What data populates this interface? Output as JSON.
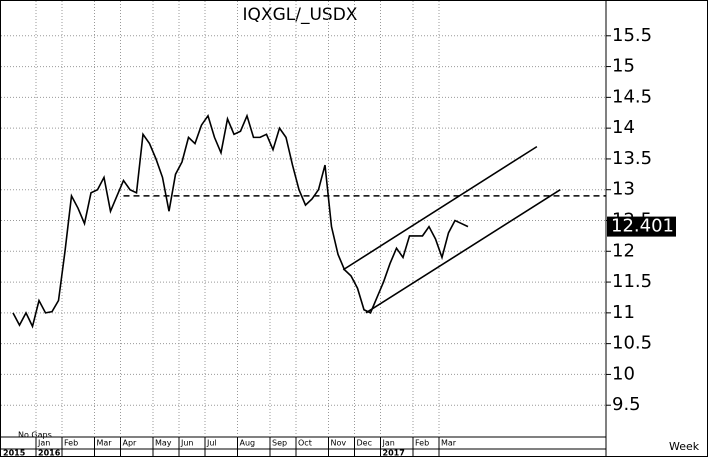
{
  "chart_data": {
    "type": "line",
    "title": "IQXGL/_USDX",
    "categories": [
      null,
      null,
      null,
      null,
      "Jan",
      null,
      null,
      null,
      "Feb",
      null,
      null,
      null,
      null,
      "Mar",
      null,
      null,
      null,
      "Apr",
      null,
      null,
      null,
      null,
      "May",
      null,
      null,
      null,
      "Jun",
      null,
      null,
      null,
      "Jul",
      null,
      null,
      null,
      null,
      "Aug",
      null,
      null,
      null,
      null,
      "Sep",
      null,
      null,
      null,
      "Oct",
      null,
      null,
      null,
      null,
      "Nov",
      null,
      null,
      null,
      "Dec",
      null,
      null,
      null,
      "Jan",
      null,
      null,
      null,
      null,
      "Feb",
      null,
      null,
      null,
      "Mar",
      null,
      null,
      null,
      null
    ],
    "years": [
      "2015",
      "2016",
      "2017"
    ],
    "series": [
      {
        "name": "IQXGL/_USDX",
        "color": "#000000",
        "values": [
          11.0,
          10.8,
          11.0,
          10.78,
          11.2,
          11.0,
          11.02,
          11.2,
          12.0,
          12.9,
          12.7,
          12.45,
          12.95,
          13.0,
          13.2,
          12.65,
          12.9,
          13.15,
          13.0,
          12.95,
          13.9,
          13.75,
          13.5,
          13.2,
          12.65,
          13.25,
          13.45,
          13.85,
          13.75,
          14.05,
          14.2,
          13.85,
          13.6,
          14.15,
          13.9,
          13.95,
          14.2,
          13.85,
          13.85,
          13.9,
          13.65,
          14.0,
          13.85,
          13.4,
          13.0,
          12.75,
          12.85,
          13.0,
          13.4,
          12.4,
          11.95,
          11.7,
          11.6,
          11.4,
          11.05,
          11.0,
          11.25,
          11.5,
          11.8,
          12.05,
          11.9,
          12.25,
          12.25,
          12.25,
          12.4,
          12.2,
          11.9,
          12.3,
          12.5,
          12.45,
          12.4
        ]
      }
    ],
    "last_value": 12.401,
    "reference_line": {
      "start": 17,
      "value": 12.9
    },
    "trend_lines": [
      {
        "start": [
          50.8,
          11.7
        ],
        "end": [
          80.6,
          13.7
        ]
      },
      {
        "start": [
          54.3,
          11.0
        ],
        "end": [
          84.2,
          13.0
        ]
      }
    ],
    "ylim": [
      9,
      16
    ],
    "yticks": [
      9.5,
      10,
      10.5,
      11,
      11.5,
      12,
      12.5,
      13,
      13.5,
      14,
      14.5,
      15,
      15.5
    ],
    "grid": true,
    "note": "No Gaps",
    "xlabel": "Week"
  }
}
